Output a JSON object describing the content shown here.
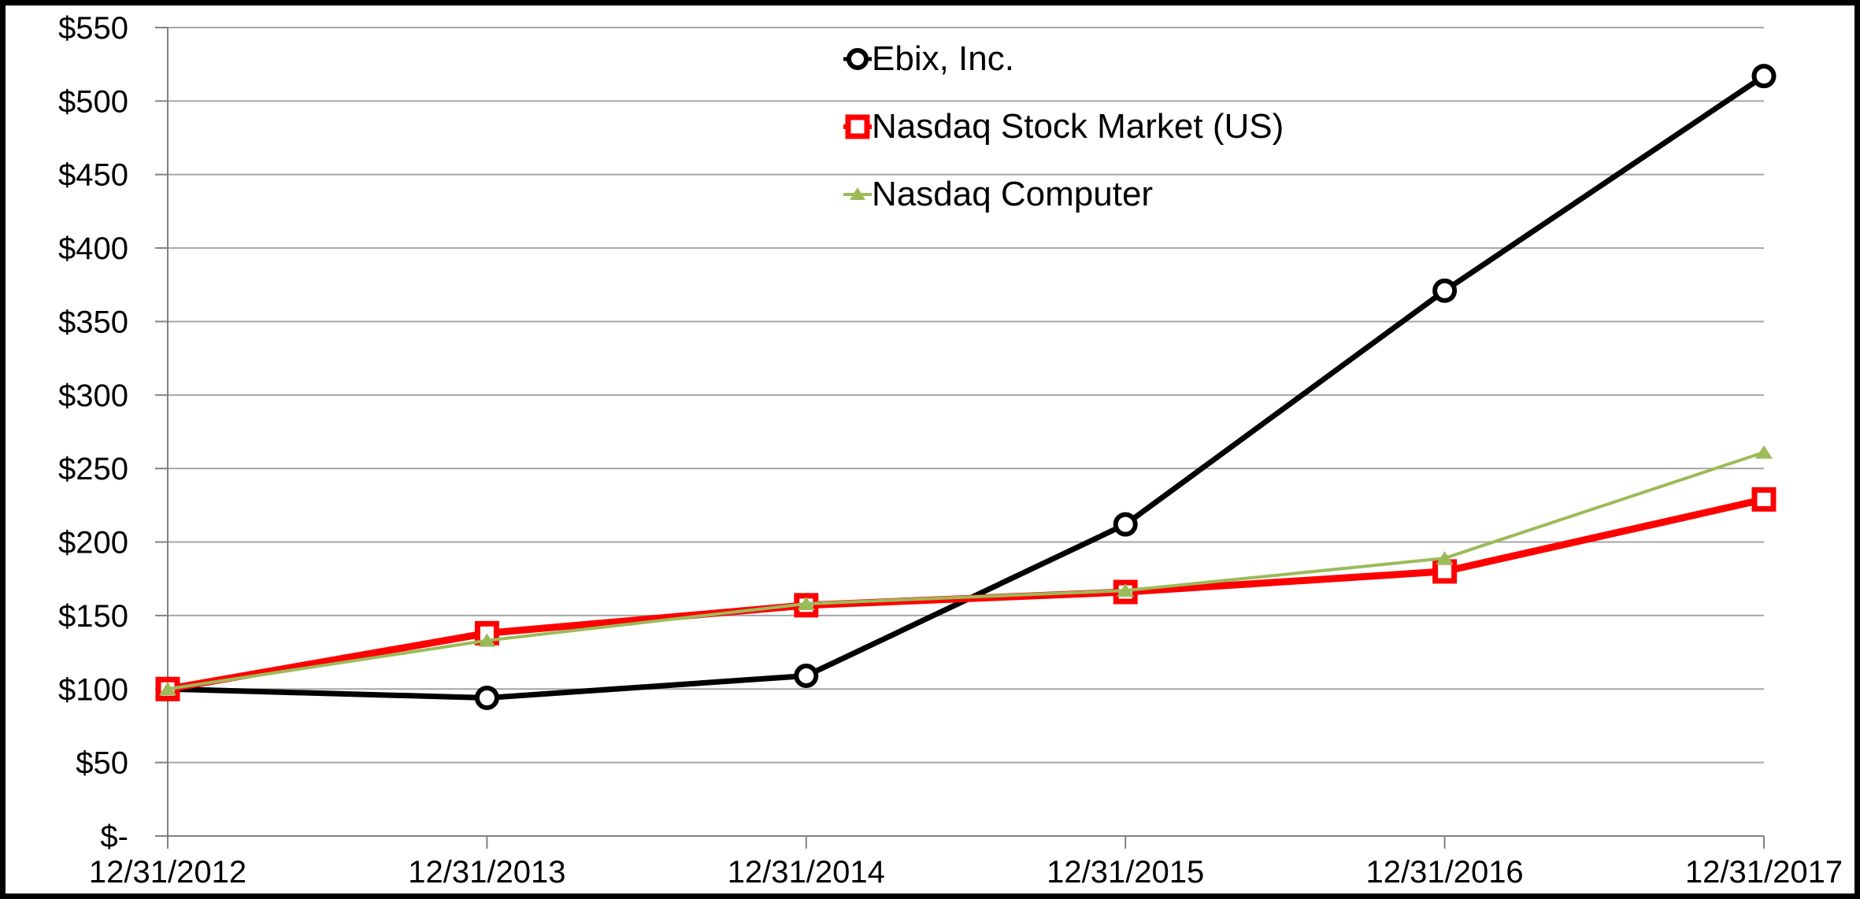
{
  "chart_data": {
    "type": "line",
    "title": "",
    "xlabel": "",
    "ylabel": "",
    "categories": [
      "12/31/2012",
      "12/31/2013",
      "12/31/2014",
      "12/31/2015",
      "12/31/2016",
      "12/31/2017"
    ],
    "series": [
      {
        "name": "Ebix, Inc.",
        "color": "#000000",
        "marker": "circle",
        "line_width": 7,
        "values": [
          100,
          94,
          109,
          212,
          371,
          517
        ]
      },
      {
        "name": "Nasdaq Stock Market (US)",
        "color": "#FF0000",
        "marker": "square",
        "line_width": 9,
        "values": [
          100,
          138,
          157,
          166,
          180,
          229
        ]
      },
      {
        "name": "Nasdaq Computer",
        "color": "#9BBB59",
        "marker": "triangle",
        "line_width": 4,
        "values": [
          100,
          133,
          158,
          167,
          189,
          261
        ]
      }
    ],
    "ylim": [
      0,
      550
    ],
    "ytick_step": 50,
    "ytick_labels": [
      "$-",
      "$50",
      "$100",
      "$150",
      "$200",
      "$250",
      "$300",
      "$350",
      "$400",
      "$450",
      "$500",
      "$550"
    ],
    "grid": "horizontal-only",
    "legend_position": "top-center",
    "colors": {
      "gridline": "#A6A6A6",
      "axis": "#808080",
      "text": "#000000",
      "plot_background": "#FFFFFF",
      "outer_border": "#000000"
    }
  }
}
